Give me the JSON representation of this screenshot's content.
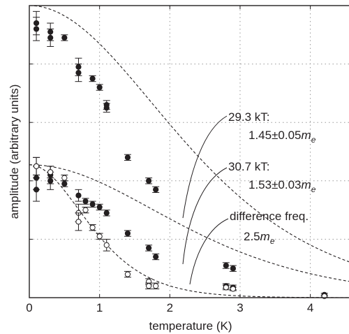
{
  "chart_data": {
    "type": "scatter",
    "xlabel": "temperature (K)",
    "ylabel": "amplitude (arbitrary units)",
    "xlim": [
      0,
      4.6
    ],
    "ylim": [
      0,
      1.0
    ],
    "x_ticks": [
      "0",
      "1",
      "2",
      "3",
      "4"
    ],
    "y_ticks": [],
    "grid": "dotted",
    "series": [
      {
        "marker": "filled-circle",
        "points": [
          {
            "x": 0.1,
            "y": 0.94,
            "err": 0.04
          },
          {
            "x": 0.1,
            "y": 0.92,
            "err": 0.04
          },
          {
            "x": 0.3,
            "y": 0.91,
            "err": 0.03
          },
          {
            "x": 0.3,
            "y": 0.89,
            "err": 0.03
          },
          {
            "x": 0.5,
            "y": 0.89,
            "err": 0.01
          },
          {
            "x": 0.7,
            "y": 0.79,
            "err": 0.03
          },
          {
            "x": 0.7,
            "y": 0.77,
            "err": 0.03
          },
          {
            "x": 0.9,
            "y": 0.75,
            "err": 0.01
          },
          {
            "x": 1.0,
            "y": 0.72,
            "err": 0.01
          },
          {
            "x": 1.1,
            "y": 0.66,
            "err": 0.015
          },
          {
            "x": 1.1,
            "y": 0.65,
            "err": 0.015
          },
          {
            "x": 1.4,
            "y": 0.48,
            "err": 0.01
          },
          {
            "x": 1.7,
            "y": 0.4,
            "err": 0.01
          },
          {
            "x": 1.8,
            "y": 0.37,
            "err": 0.01
          },
          {
            "x": 2.8,
            "y": 0.11,
            "err": 0.01
          },
          {
            "x": 2.9,
            "y": 0.1,
            "err": 0.01
          }
        ]
      },
      {
        "marker": "filled-circle",
        "points": [
          {
            "x": 0.1,
            "y": 0.41,
            "err": 0.04
          },
          {
            "x": 0.1,
            "y": 0.37,
            "err": 0.04
          },
          {
            "x": 0.1,
            "y": 0.45,
            "err": 0.03
          },
          {
            "x": 0.3,
            "y": 0.42,
            "err": 0.03
          },
          {
            "x": 0.3,
            "y": 0.4,
            "err": 0.03
          },
          {
            "x": 0.5,
            "y": 0.39,
            "err": 0.01
          },
          {
            "x": 0.7,
            "y": 0.35,
            "err": 0.02
          },
          {
            "x": 0.8,
            "y": 0.33,
            "err": 0.01
          },
          {
            "x": 0.9,
            "y": 0.32,
            "err": 0.01
          },
          {
            "x": 1.0,
            "y": 0.31,
            "err": 0.01
          },
          {
            "x": 1.1,
            "y": 0.29,
            "err": 0.01
          },
          {
            "x": 1.4,
            "y": 0.22,
            "err": 0.01
          },
          {
            "x": 1.7,
            "y": 0.17,
            "err": 0.01
          },
          {
            "x": 1.8,
            "y": 0.14,
            "err": 0.01
          },
          {
            "x": 2.8,
            "y": 0.04,
            "err": 0.008
          },
          {
            "x": 2.9,
            "y": 0.035,
            "err": 0.008
          },
          {
            "x": 4.2,
            "y": 0.01,
            "err": 0.005
          }
        ]
      },
      {
        "marker": "open-circle",
        "points": [
          {
            "x": 0.1,
            "y": 0.45,
            "err": 0.03
          },
          {
            "x": 0.3,
            "y": 0.43,
            "err": 0.02
          },
          {
            "x": 0.5,
            "y": 0.41,
            "err": 0.01
          },
          {
            "x": 0.7,
            "y": 0.29,
            "err": 0.03
          },
          {
            "x": 0.7,
            "y": 0.26,
            "err": 0.03
          },
          {
            "x": 0.8,
            "y": 0.3,
            "err": 0.01
          },
          {
            "x": 0.9,
            "y": 0.24,
            "err": 0.01
          },
          {
            "x": 1.0,
            "y": 0.21,
            "err": 0.01
          },
          {
            "x": 1.1,
            "y": 0.18,
            "err": 0.02
          },
          {
            "x": 1.4,
            "y": 0.08,
            "err": 0.01
          },
          {
            "x": 1.7,
            "y": 0.055,
            "err": 0.01
          },
          {
            "x": 1.7,
            "y": 0.04,
            "err": 0.01
          },
          {
            "x": 1.8,
            "y": 0.04,
            "err": 0.01
          },
          {
            "x": 2.8,
            "y": 0.035,
            "err": 0.008
          },
          {
            "x": 2.9,
            "y": 0.03,
            "err": 0.006
          },
          {
            "x": 4.2,
            "y": 0.005,
            "err": 0.004
          }
        ]
      }
    ],
    "fit_curves": [
      {
        "style": "dashed",
        "A": 1.0,
        "scale": 1.0
      },
      {
        "style": "dashed",
        "A": 0.455,
        "scale": 1.0
      },
      {
        "style": "dashed",
        "A": 0.455,
        "scale": 1.0,
        "mass": 2.5
      }
    ],
    "annotations": [
      {
        "line1": "29.3 kT:",
        "value": "1.45±0.05",
        "unit": "m",
        "sub": "e"
      },
      {
        "line1": "30.7 kT:",
        "value": "1.53±0.03",
        "unit": "m",
        "sub": "e"
      },
      {
        "line1": "difference freq.",
        "value": "2.5",
        "unit": "m",
        "sub": "e"
      }
    ]
  },
  "colors": {
    "axis": "#231f20",
    "grid": "#999999",
    "marker": "#231f20"
  }
}
